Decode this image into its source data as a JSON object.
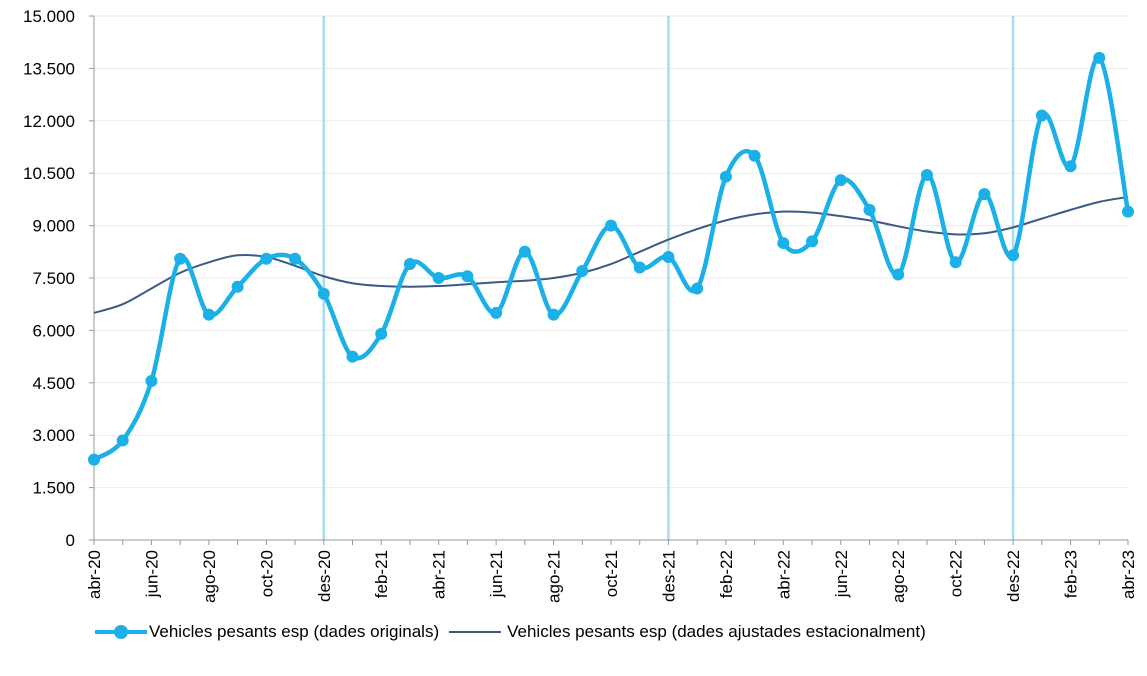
{
  "chart_data": {
    "type": "line",
    "title": "",
    "xlabel": "",
    "ylabel": "",
    "ylim": [
      0,
      15000
    ],
    "y_ticks": [
      "0",
      "1.500",
      "3.000",
      "4.500",
      "6.000",
      "7.500",
      "9.000",
      "10.500",
      "12.000",
      "13.500",
      "15.000"
    ],
    "grid": true,
    "legend_position": "bottom",
    "x": [
      "abr-20",
      "mai-20",
      "jun-20",
      "jul-20",
      "ago-20",
      "set-20",
      "oct-20",
      "nov-20",
      "des-20",
      "gen-21",
      "feb-21",
      "mar-21",
      "abr-21",
      "mai-21",
      "jun-21",
      "jul-21",
      "ago-21",
      "set-21",
      "oct-21",
      "nov-21",
      "des-21",
      "gen-22",
      "feb-22",
      "mar-22",
      "abr-22",
      "mai-22",
      "jun-22",
      "jul-22",
      "ago-22",
      "set-22",
      "oct-22",
      "nov-22",
      "des-22",
      "gen-23",
      "feb-23",
      "mar-23",
      "abr-23"
    ],
    "x_tick_labels": [
      "abr-20",
      "jun-20",
      "ago-20",
      "oct-20",
      "des-20",
      "feb-21",
      "abr-21",
      "jun-21",
      "ago-21",
      "oct-21",
      "des-21",
      "feb-22",
      "abr-22",
      "jun-22",
      "ago-22",
      "oct-22",
      "des-22",
      "feb-23",
      "abr-23"
    ],
    "reference_lines_at": [
      "des-20",
      "des-21",
      "des-22"
    ],
    "series": [
      {
        "name": "Vehicles pesants esp (dades originals)",
        "color": "#1BB0E8",
        "values": [
          2300,
          2850,
          4550,
          8050,
          6450,
          7250,
          8050,
          8050,
          7050,
          5250,
          5900,
          7900,
          7500,
          7550,
          6500,
          8250,
          6450,
          7700,
          9000,
          7800,
          8100,
          7200,
          10400,
          11000,
          8500,
          8550,
          10300,
          9450,
          7600,
          10450,
          7950,
          9900,
          8150,
          12150,
          10700,
          13800,
          9400
        ]
      },
      {
        "name": "Vehicles pesants esp (dades ajustades estacionalment)",
        "color": "#3B5B85",
        "values": [
          6500,
          6750,
          7200,
          7650,
          7950,
          8150,
          8100,
          7850,
          7550,
          7350,
          7270,
          7250,
          7270,
          7320,
          7380,
          7420,
          7500,
          7650,
          7900,
          8250,
          8600,
          8900,
          9150,
          9320,
          9400,
          9370,
          9270,
          9150,
          8980,
          8830,
          8750,
          8780,
          8950,
          9200,
          9450,
          9680,
          9820
        ]
      }
    ]
  }
}
